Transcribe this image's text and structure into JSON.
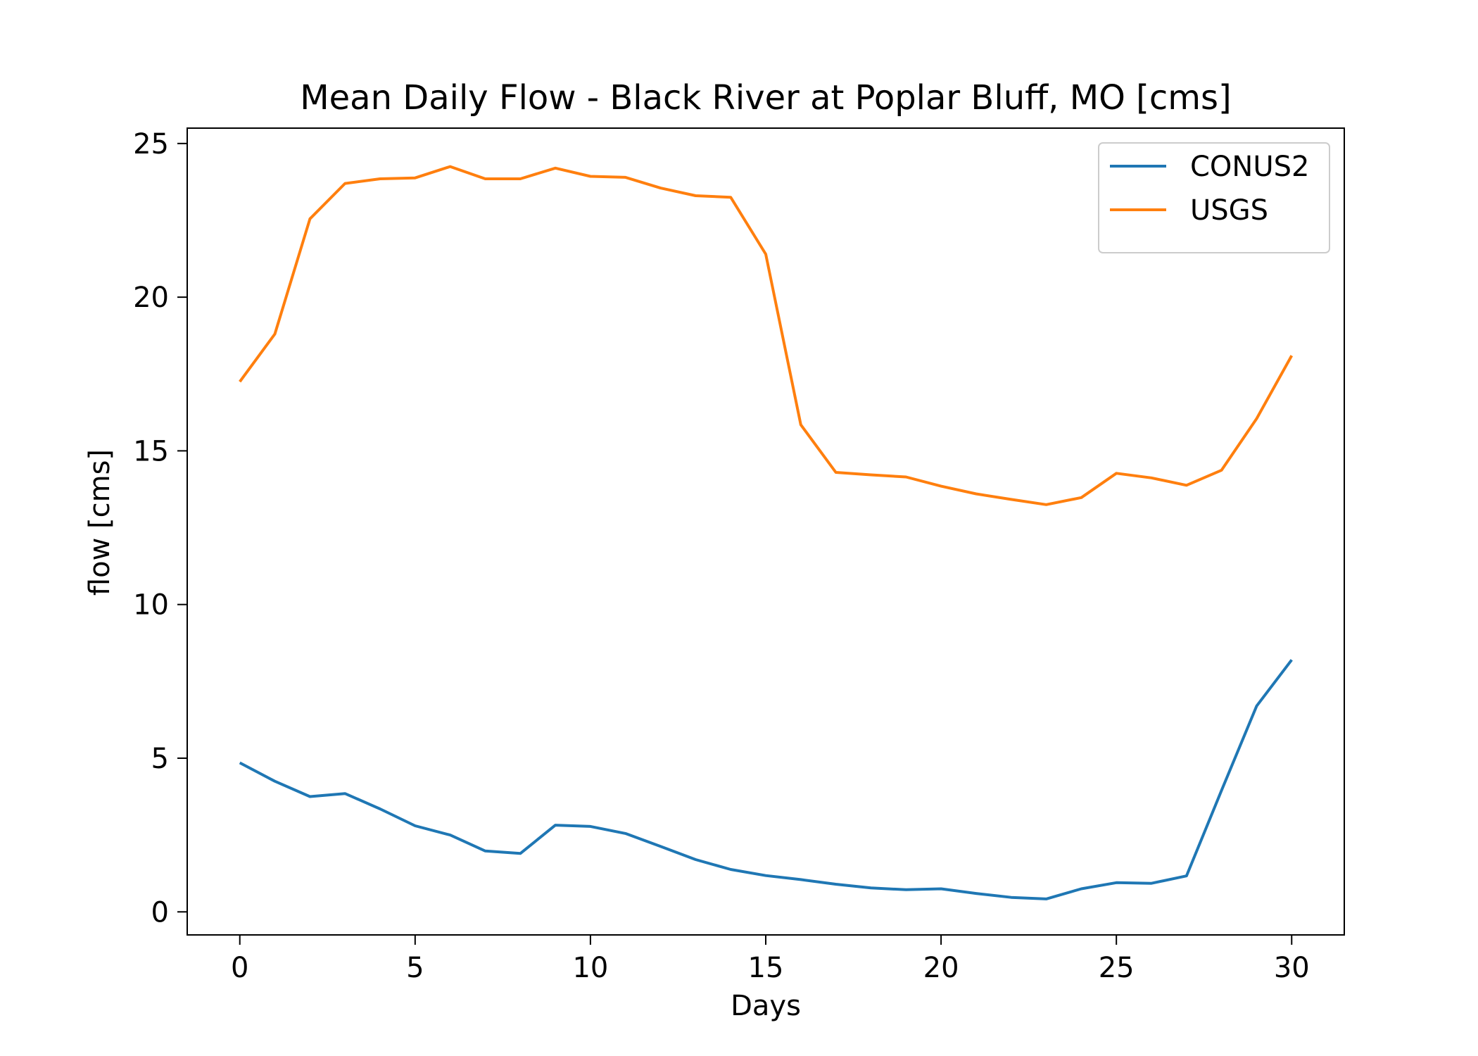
{
  "chart_data": {
    "type": "line",
    "title": "Mean Daily Flow - Black River at Poplar Bluff, MO [cms]",
    "xlabel": "Days",
    "ylabel": "flow [cms]",
    "xlim": [
      -1.5,
      31.5
    ],
    "ylim": [
      -0.75,
      25.5
    ],
    "xticks": [
      0,
      5,
      10,
      15,
      20,
      25,
      30
    ],
    "yticks": [
      0,
      5,
      10,
      15,
      20,
      25
    ],
    "grid": false,
    "legend_position": "top-right",
    "x": [
      0,
      1,
      2,
      3,
      4,
      5,
      6,
      7,
      8,
      9,
      10,
      11,
      12,
      13,
      14,
      15,
      16,
      17,
      18,
      19,
      20,
      21,
      22,
      23,
      24,
      25,
      26,
      27,
      28,
      29,
      30
    ],
    "series": [
      {
        "name": "CONUS2",
        "color": "#1f77b4",
        "values": [
          4.85,
          4.25,
          3.75,
          3.85,
          3.35,
          2.8,
          2.5,
          1.98,
          1.9,
          2.82,
          2.78,
          2.55,
          2.13,
          1.7,
          1.38,
          1.18,
          1.05,
          0.9,
          0.78,
          0.72,
          0.75,
          0.6,
          0.47,
          0.42,
          0.75,
          0.95,
          0.93,
          1.17,
          3.95,
          6.7,
          8.2
        ]
      },
      {
        "name": "USGS",
        "color": "#ff7f0e",
        "values": [
          17.25,
          18.8,
          22.55,
          23.7,
          23.85,
          23.88,
          24.25,
          23.85,
          23.85,
          24.2,
          23.93,
          23.9,
          23.55,
          23.3,
          23.25,
          21.4,
          15.85,
          14.3,
          14.22,
          14.15,
          13.85,
          13.6,
          13.42,
          13.25,
          13.48,
          14.27,
          14.12,
          13.88,
          14.37,
          16.05,
          18.1
        ]
      }
    ]
  }
}
